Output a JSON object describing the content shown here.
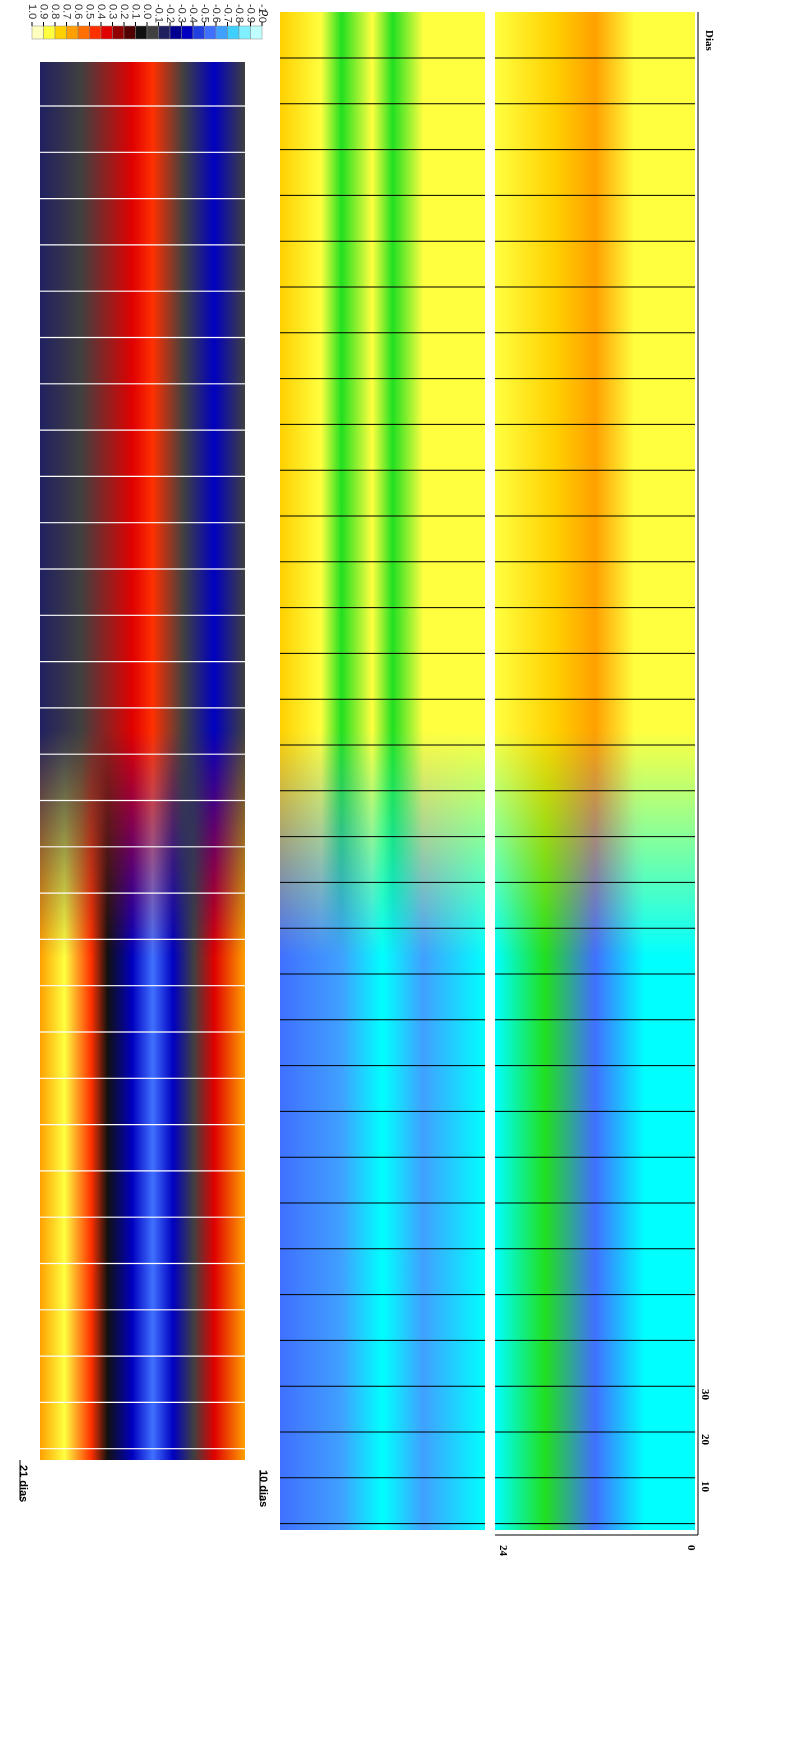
{
  "colorbar": {
    "label": "ρ",
    "ticks": [
      {
        "value": 1,
        "label": "1.0"
      },
      0.9,
      0.8,
      0.7,
      0.6,
      0.5,
      0.4,
      0.3,
      0.2,
      0.1,
      {
        "value": 0,
        "label": "0.0"
      },
      -0.1,
      -0.2,
      -0.3,
      -0.4,
      -0.5,
      -0.6,
      -0.7,
      -0.8,
      -0.9,
      {
        "value": -1,
        "label": "-1.0"
      }
    ],
    "colors": [
      "#ffffc0",
      "#ffff40",
      "#ffd000",
      "#ffa000",
      "#ff7000",
      "#ff3000",
      "#e00000",
      "#900000",
      "#500000",
      "#101010",
      "#404040",
      "#202060",
      "#000090",
      "#0000c0",
      "#2040e0",
      "#4070ff",
      "#40a0ff",
      "#40d0ff",
      "#80f0ff",
      "#c0ffff"
    ]
  },
  "labels": {
    "window_21": "21 dias",
    "window_10": "10 dias",
    "x_axis": "Dias",
    "x_ticks": [
      "10",
      "20",
      "30"
    ],
    "y_top": "24",
    "y_bottom": "0"
  }
}
